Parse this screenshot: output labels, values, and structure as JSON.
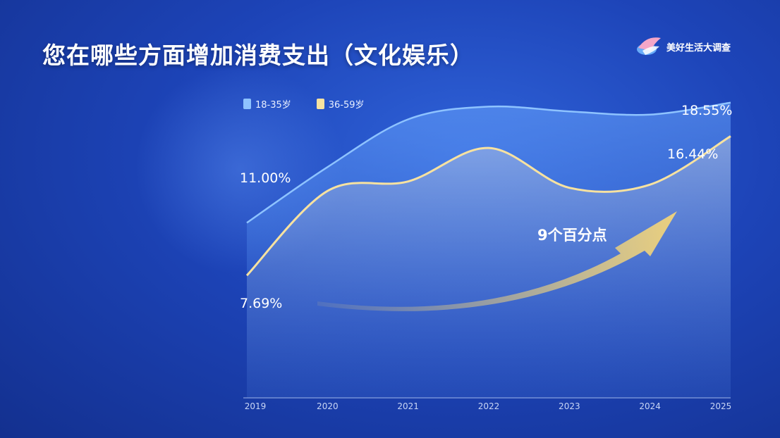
{
  "page": {
    "title": "您在哪些方面增加消费支出（文化娱乐）",
    "logo_text": "美好生活大调查",
    "annotation": "9个百分点"
  },
  "colors": {
    "series_young": "#8ec3ff",
    "series_old": "#f7e2a0",
    "arrow": "#f2d47a"
  },
  "chart_data": {
    "type": "area",
    "title": "您在哪些方面增加消费支出（文化娱乐）",
    "x": [
      "2019",
      "2020",
      "2021",
      "2022",
      "2023",
      "2024",
      "2025"
    ],
    "series": [
      {
        "name": "18-35岁",
        "values": [
          11.0,
          14.5,
          17.5,
          18.3,
          18.0,
          17.8,
          18.55
        ],
        "start_label": "11.00%",
        "end_label": "18.55%"
      },
      {
        "name": "36-59岁",
        "values": [
          7.69,
          13.0,
          13.6,
          15.7,
          13.2,
          13.4,
          16.44
        ],
        "start_label": "7.69%",
        "end_label": "16.44%"
      }
    ],
    "ylim": [
      0,
      25
    ],
    "grid": false,
    "legend": "top-left",
    "annotation": "9个百分点"
  }
}
